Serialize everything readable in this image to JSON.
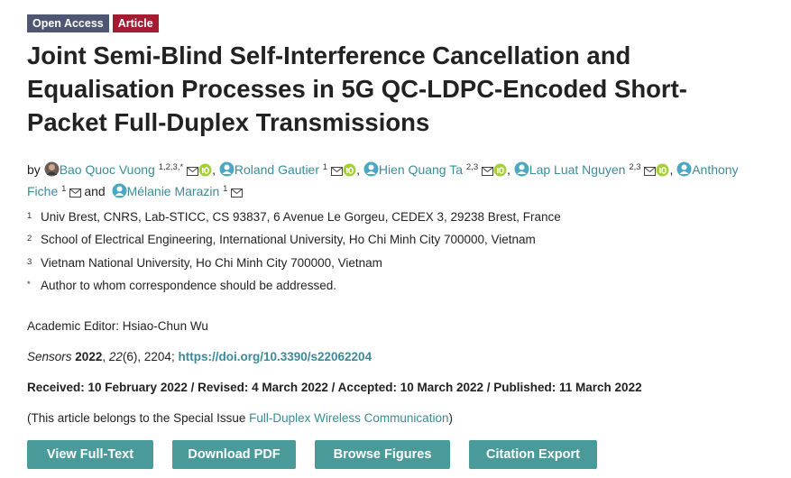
{
  "badges": [
    "Open Access",
    "Article"
  ],
  "title": "Joint Semi-Blind Self-Interference Cancellation and Equalisation Processes in 5G QC-LDPC-Encoded Short-Packet Full-Duplex Transmissions",
  "by": "by",
  "authors": [
    {
      "name": "Bao Quoc Vuong",
      "affil": "1,2,3,*",
      "sep": ","
    },
    {
      "name": "Roland Gautier",
      "affil": "1",
      "sep": ","
    },
    {
      "name": "Hien Quang Ta",
      "affil": "2,3",
      "sep": ","
    },
    {
      "name": "Lap Luat Nguyen",
      "affil": "2,3",
      "sep": ","
    },
    {
      "name": "Anthony Fiche",
      "affil": "1",
      "sep": "and"
    },
    {
      "name": "Mélanie Marazin",
      "affil": "1"
    }
  ],
  "affiliations": [
    {
      "mark": "1",
      "text": "Univ Brest, CNRS, Lab-STICC, CS 93837, 6 Avenue Le Gorgeu, CEDEX 3, 29238 Brest, France"
    },
    {
      "mark": "2",
      "text": "School of Electrical Engineering, International University, Ho Chi Minh City 700000, Vietnam"
    },
    {
      "mark": "3",
      "text": "Vietnam National University, Ho Chi Minh City 700000, Vietnam"
    },
    {
      "mark": "*",
      "text": "Author to whom correspondence should be addressed."
    }
  ],
  "academic_editor": "Academic Editor: Hsiao-Chun Wu",
  "citation": {
    "journal": "Sensors",
    "year": "2022",
    "volume": "22",
    "issue_pages": "(6), 2204;",
    "doi": "https://doi.org/10.3390/s22062204"
  },
  "dates": "Received: 10 February 2022 / Revised: 4 March 2022 / Accepted: 10 March 2022 / Published: 11 March 2022",
  "special_issue": {
    "prefix": "(This article belongs to the Special Issue",
    "link": "Full-Duplex Wireless Communication",
    "suffix": ")"
  },
  "buttons": [
    "View Full-Text",
    "Download PDF",
    "Browse Figures",
    "Citation Export"
  ]
}
